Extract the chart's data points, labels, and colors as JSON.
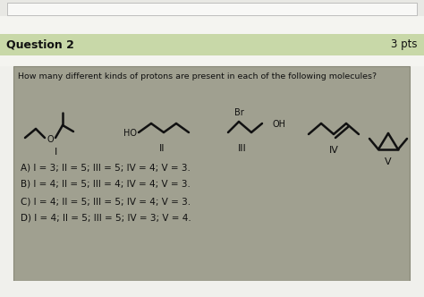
{
  "question_header": "Question 2",
  "pts_text": "3 pts",
  "question_text": "How many different kinds of protons are present in each of the following molecules?",
  "answer_A": "A) I = 3; II = 5; III = 5; IV = 4; V = 3.",
  "answer_B": "B) I = 4; II = 5; III = 4; IV = 4; V = 3.",
  "answer_C": "C) I = 4; II = 5; III = 5; IV = 4; V = 3.",
  "answer_D": "D) I = 4; II = 5; III = 5; IV = 3; V = 4.",
  "bg_top_strip": "#e8e8e4",
  "bg_outer": "#f0f0ec",
  "bg_header": "#c8d8a8",
  "bg_white_strip": "#f4f4f0",
  "bg_inner": "#a0a090",
  "inner_border": "#888878",
  "fig_width": 4.74,
  "fig_height": 3.32,
  "dpi": 100
}
